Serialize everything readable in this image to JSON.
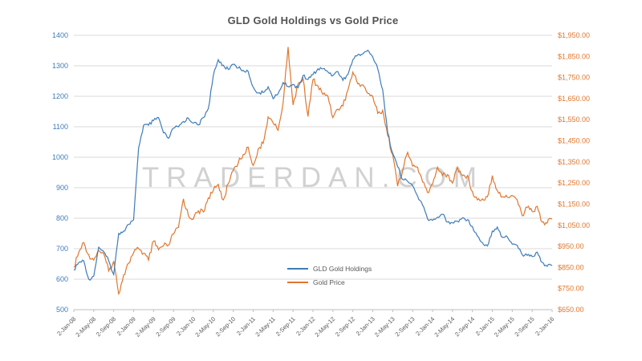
{
  "watermark": "TRADERDAN.COM",
  "colors": {
    "holdings_line": "#3e7cb8",
    "price_line": "#e0772e",
    "grid": "#d9d9d9",
    "axis_line": "#bfbfbf",
    "axis_text": "#595959",
    "title_text": "#535353"
  },
  "chart_data": {
    "type": "line",
    "title": "GLD Gold Holdings vs Gold Price",
    "x_ticks": [
      "2-Jan-08",
      "2-May-08",
      "2-Sep-08",
      "2-Jan-09",
      "2-May-09",
      "2-Sep-09",
      "2-Jan-10",
      "2-May-10",
      "2-Sep-10",
      "2-Jan-11",
      "2-May-11",
      "2-Sep-11",
      "2-Jan-12",
      "2-May-12",
      "2-Sep-12",
      "2-Jan-13",
      "2-May-13",
      "2-Sep-13",
      "2-Jan-14",
      "2-May-14",
      "2-Sep-14",
      "2-Jan-15",
      "2-May-15",
      "2-Sep-15",
      "2-Jan-16"
    ],
    "points_per_tick": 4,
    "x_resolution": "monthly",
    "y_left": {
      "min": 500,
      "max": 1400,
      "labels": [
        "500",
        "600",
        "700",
        "800",
        "900",
        "1000",
        "1100",
        "1200",
        "1300",
        "1400"
      ]
    },
    "y_right": {
      "min": 650,
      "max": 1950,
      "labels": [
        "$650.00",
        "$750.00",
        "$850.00",
        "$950.00",
        "$1,050.00",
        "$1,150.00",
        "$1,250.00",
        "$1,350.00",
        "$1,450.00",
        "$1,550.00",
        "$1,650.00",
        "$1,750.00",
        "$1,850.00",
        "$1,950.00"
      ]
    },
    "grid": true,
    "legend_position": "inside-bottom-center",
    "series": [
      {
        "name": "GLD Gold Holdings",
        "axis": "left",
        "color": "#3e7cb8",
        "values": [
          630,
          655,
          660,
          600,
          610,
          705,
          690,
          660,
          615,
          750,
          758,
          780,
          795,
          1030,
          1105,
          1105,
          1120,
          1130,
          1080,
          1062,
          1095,
          1100,
          1117,
          1128,
          1112,
          1106,
          1130,
          1160,
          1268,
          1320,
          1302,
          1288,
          1305,
          1293,
          1285,
          1281,
          1230,
          1211,
          1212,
          1231,
          1192,
          1208,
          1245,
          1232,
          1239,
          1228,
          1268,
          1255,
          1271,
          1290,
          1290,
          1280,
          1268,
          1281,
          1252,
          1271,
          1320,
          1336,
          1339,
          1351,
          1329,
          1290,
          1221,
          1080,
          1013,
          969,
          927,
          921,
          906,
          872,
          843,
          798,
          793,
          803,
          813,
          787,
          785,
          790,
          801,
          795,
          773,
          741,
          720,
          709,
          758,
          771,
          737,
          739,
          715,
          711,
          680,
          678,
          674,
          689,
          655,
          642,
          645
        ]
      },
      {
        "name": "Gold Price",
        "axis": "right",
        "color": "#e0772e",
        "values": [
          850,
          922,
          968,
          910,
          885,
          930,
          915,
          833,
          880,
          725,
          815,
          870,
          920,
          940,
          917,
          885,
          975,
          934,
          953,
          955,
          1008,
          1040,
          1175,
          1095,
          1080,
          1118,
          1113,
          1180,
          1215,
          1244,
          1170,
          1248,
          1310,
          1345,
          1385,
          1420,
          1333,
          1411,
          1438,
          1563,
          1535,
          1500,
          1630,
          1895,
          1620,
          1720,
          1745,
          1565,
          1740,
          1710,
          1670,
          1662,
          1560,
          1600,
          1615,
          1690,
          1775,
          1720,
          1715,
          1675,
          1660,
          1580,
          1595,
          1475,
          1385,
          1235,
          1310,
          1395,
          1330,
          1325,
          1255,
          1205,
          1245,
          1325,
          1285,
          1290,
          1250,
          1325,
          1285,
          1285,
          1210,
          1170,
          1175,
          1185,
          1285,
          1215,
          1185,
          1183,
          1190,
          1170,
          1095,
          1135,
          1115,
          1140,
          1065,
          1060,
          1080
        ]
      }
    ]
  }
}
